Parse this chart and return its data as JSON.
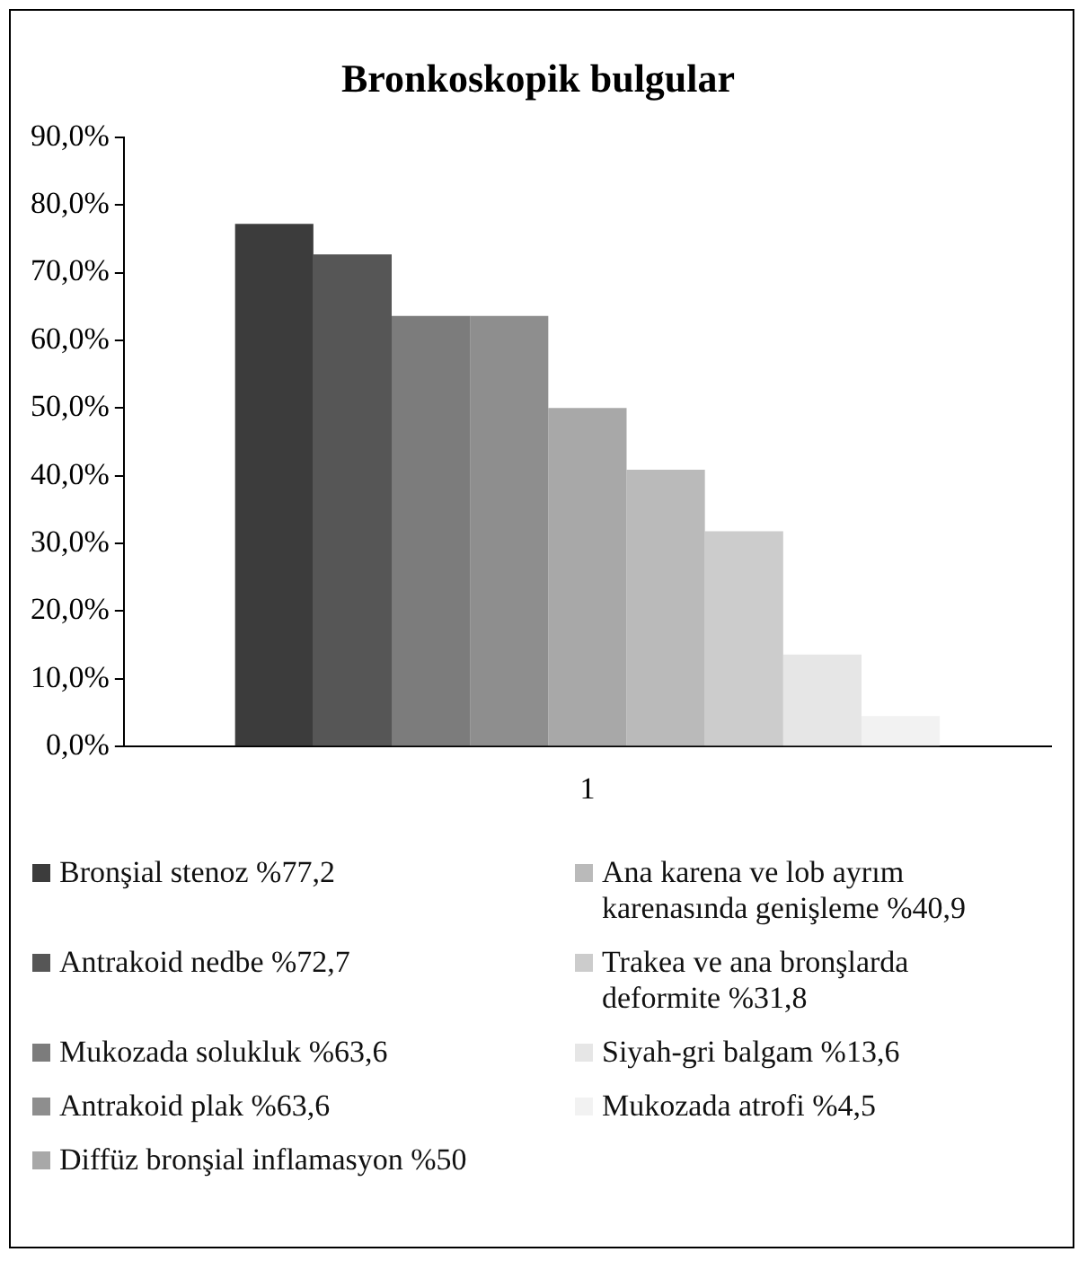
{
  "chart_data": {
    "type": "bar",
    "title": "Bronkoskopik bulgular",
    "categories": [
      "1"
    ],
    "series": [
      {
        "name": "Bronşial stenoz %77,2",
        "color": "#3c3c3c",
        "values": [
          77.2
        ]
      },
      {
        "name": "Antrakoid nedbe %72,7",
        "color": "#565656",
        "values": [
          72.7
        ]
      },
      {
        "name": "Mukozada solukluk %63,6",
        "color": "#7c7c7c",
        "values": [
          63.6
        ]
      },
      {
        "name": "Antrakoid plak %63,6",
        "color": "#8e8e8e",
        "values": [
          63.6
        ]
      },
      {
        "name": "Diffüz bronşial inflamasyon %50",
        "color": "#a8a8a8",
        "values": [
          50
        ]
      },
      {
        "name": "Ana karena ve lob ayrım karenasında genişleme %40,9",
        "color": "#bababa",
        "values": [
          40.9
        ]
      },
      {
        "name": "Trakea ve ana bronşlarda deformite %31,8",
        "color": "#cccccc",
        "values": [
          31.8
        ]
      },
      {
        "name": "Siyah-gri balgam %13,6",
        "color": "#e6e6e6",
        "values": [
          13.6
        ]
      },
      {
        "name": "Mukozada atrofi %4,5",
        "color": "#f2f2f2",
        "values": [
          4.5
        ]
      }
    ],
    "ylim": [
      0,
      90
    ],
    "yticks": [
      {
        "value": 0,
        "label": "0,0%"
      },
      {
        "value": 10,
        "label": "10,0%"
      },
      {
        "value": 20,
        "label": "20,0%"
      },
      {
        "value": 30,
        "label": "30,0%"
      },
      {
        "value": 40,
        "label": "40,0%"
      },
      {
        "value": 50,
        "label": "50,0%"
      },
      {
        "value": 60,
        "label": "60,0%"
      },
      {
        "value": 70,
        "label": "70,0%"
      },
      {
        "value": 80,
        "label": "80,0%"
      },
      {
        "value": 90,
        "label": "90,0%"
      }
    ],
    "grid": false,
    "legend": "bottom"
  }
}
